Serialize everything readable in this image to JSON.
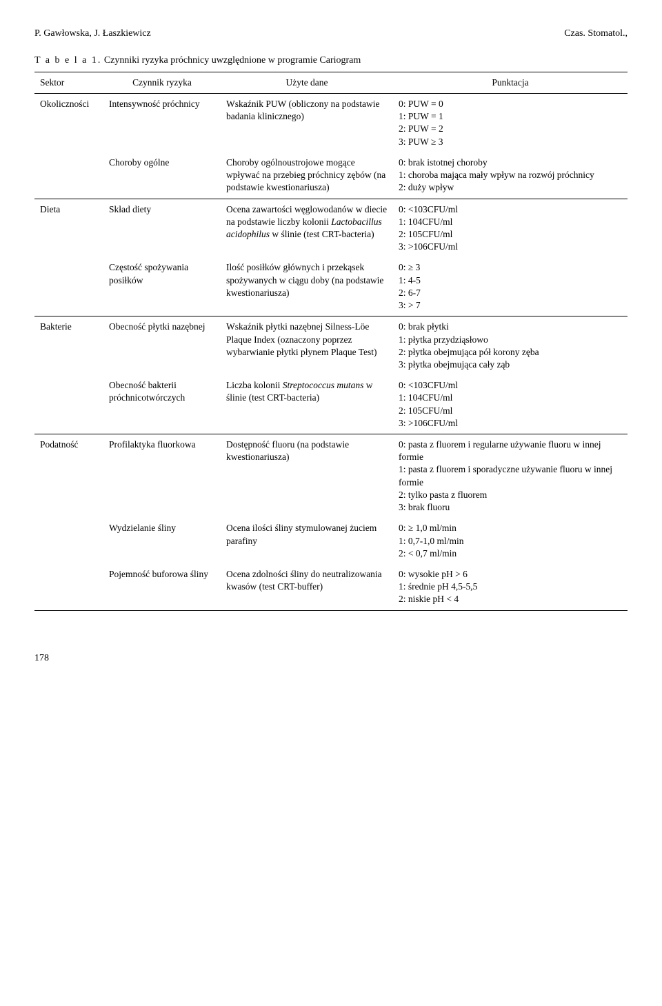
{
  "header": {
    "left": "P. Gawłowska, J. Łaszkiewicz",
    "right": "Czas. Stomatol.,"
  },
  "caption": {
    "label": "T a b e l a  1.",
    "title": "Czynniki ryzyka próchnicy uwzględnione w programie Cariogram"
  },
  "columns": {
    "sector": "Sektor",
    "factor": "Czynnik ryzyka",
    "data": "Użyte dane",
    "score": "Punktacja"
  },
  "rows": [
    {
      "sector": "Okoliczności",
      "factor": "Intensywność próchnicy",
      "data": "Wskaźnik PUW (obliczony na podstawie badania klinicznego)",
      "score": "0: PUW = 0\n1: PUW = 1\n2: PUW = 2\n3: PUW ≥ 3",
      "sep": false
    },
    {
      "sector": "",
      "factor": "Choroby ogólne",
      "data": "Choroby ogólnoustrojowe mogące wpływać na przebieg próchnicy zębów (na podstawie kwestionariusza)",
      "score": "0: brak istotnej choroby\n1: choroba mająca mały wpływ na rozwój próchnicy\n2: duży wpływ",
      "sep": true
    },
    {
      "sector": "Dieta",
      "factor": "Skład diety",
      "data_html": "Ocena zawartości węglowodanów w diecie na podstawie liczby kolonii <span class=\"italic\">Lactobacillus acidophilus</span> w ślinie (test CRT-bacteria)",
      "score": "0: <103CFU/ml\n1: 104CFU/ml\n2: 105CFU/ml\n3: >106CFU/ml",
      "sep": false
    },
    {
      "sector": "",
      "factor": "Częstość spożywania posiłków",
      "data": "Ilość posiłków głównych i przekąsek spożywanych w ciągu doby (na podstawie kwestionariusza)",
      "score": "0: ≥ 3\n1: 4-5\n2: 6-7\n3: > 7",
      "sep": true
    },
    {
      "sector": "Bakterie",
      "factor": "Obecność płytki nazębnej",
      "data": "Wskaźnik płytki nazębnej Silness-Löe Plaque Index (oznaczony poprzez wybarwianie płytki płynem Plaque Test)",
      "score": "0: brak płytki\n1: płytka przydziąsłowo\n2: płytka obejmująca pół korony zęba\n3: płytka obejmująca cały ząb",
      "sep": false
    },
    {
      "sector": "",
      "factor": "Obecność bakterii próchnicotwórczych",
      "data_html": "Liczba kolonii <span class=\"italic\">Streptococcus mutans</span> w ślinie (test CRT-bacteria)",
      "score": "0: <103CFU/ml\n1: 104CFU/ml\n2: 105CFU/ml\n3: >106CFU/ml",
      "sep": true
    },
    {
      "sector": "Podatność",
      "factor": "Profilaktyka fluorkowa",
      "data": "Dostępność fluoru (na podstawie kwestionariusza)",
      "score": "0: pasta z fluorem i regularne używanie fluoru w innej formie\n1: pasta z fluorem i sporadyczne używanie fluoru w innej formie\n2: tylko pasta z fluorem\n3: brak fluoru",
      "sep": false
    },
    {
      "sector": "",
      "factor": "Wydzielanie śliny",
      "data": "Ocena ilości śliny stymulowanej żuciem parafiny",
      "score": "0: ≥ 1,0 ml/min\n1: 0,7-1,0 ml/min\n2: < 0,7 ml/min",
      "sep": false
    },
    {
      "sector": "",
      "factor": "Pojemność buforowa śliny",
      "data": "Ocena zdolności śliny do neutralizowania kwasów (test CRT-buffer)",
      "score": "0: wysokie pH > 6\n1: średnie pH 4,5-5,5\n2: niskie pH < 4",
      "sep": true
    }
  ],
  "pageNumber": "178"
}
